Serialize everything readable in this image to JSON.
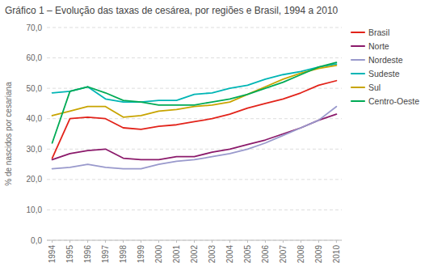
{
  "chart_data": {
    "type": "line",
    "title": "Gráfico 1 –  Evolução das taxas de cesárea, por regiões e Brasil, 1994 a 2010",
    "y_label": "% de nascidos por cesariana",
    "x": [
      1994,
      1995,
      1996,
      1997,
      1998,
      1999,
      2000,
      2001,
      2002,
      2003,
      2004,
      2005,
      2006,
      2007,
      2008,
      2009,
      2010
    ],
    "series": [
      {
        "name": "Brasil",
        "color": "#e2231a",
        "values": [
          27.0,
          40.0,
          40.5,
          40.0,
          37.0,
          36.5,
          37.5,
          38.0,
          39.0,
          40.0,
          41.5,
          43.5,
          45.0,
          46.5,
          48.5,
          51.0,
          52.5
        ]
      },
      {
        "name": "Norte",
        "color": "#8b1a6b",
        "values": [
          26.5,
          28.5,
          29.5,
          30.0,
          27.0,
          26.5,
          26.5,
          27.5,
          27.5,
          29.0,
          30.0,
          31.5,
          33.0,
          35.0,
          37.0,
          39.5,
          41.5
        ]
      },
      {
        "name": "Nordeste",
        "color": "#9999cc",
        "values": [
          23.5,
          24.0,
          25.0,
          24.0,
          23.5,
          23.5,
          25.0,
          26.0,
          26.5,
          27.5,
          28.5,
          30.0,
          32.0,
          34.5,
          37.0,
          39.5,
          44.0
        ]
      },
      {
        "name": "Sudeste",
        "color": "#00b5b5",
        "values": [
          48.5,
          49.0,
          50.5,
          46.5,
          45.5,
          45.5,
          46.0,
          46.0,
          48.0,
          48.5,
          50.0,
          51.0,
          53.0,
          54.5,
          55.5,
          57.0,
          58.0
        ]
      },
      {
        "name": "Sul",
        "color": "#c8a400",
        "values": [
          41.0,
          42.5,
          44.0,
          44.0,
          40.5,
          41.0,
          42.5,
          43.0,
          44.0,
          44.5,
          45.5,
          48.0,
          50.5,
          53.0,
          55.0,
          56.5,
          57.5
        ]
      },
      {
        "name": "Centro-Oeste",
        "color": "#00aa55",
        "values": [
          32.0,
          49.0,
          50.5,
          48.5,
          46.0,
          45.5,
          44.5,
          44.5,
          44.5,
          45.5,
          46.5,
          48.0,
          50.0,
          52.0,
          54.5,
          57.0,
          58.5
        ]
      }
    ],
    "xlim": [
      1993.7,
      2010.3
    ],
    "xticks": [
      1994,
      1995,
      1996,
      1997,
      1998,
      1999,
      2000,
      2001,
      2002,
      2003,
      2004,
      2005,
      2006,
      2007,
      2008,
      2009,
      2010
    ],
    "ylim": [
      0,
      70
    ],
    "yticks": [
      {
        "value": 0,
        "label": "0,0"
      },
      {
        "value": 10,
        "label": "10,0"
      },
      {
        "value": 20,
        "label": "20,0"
      },
      {
        "value": 30,
        "label": "30,0"
      },
      {
        "value": 40,
        "label": "40,0"
      },
      {
        "value": 50,
        "label": "50,0"
      },
      {
        "value": 60,
        "label": "60,0"
      },
      {
        "value": 70,
        "label": "70,0"
      }
    ],
    "grid": true,
    "legend": "right"
  }
}
